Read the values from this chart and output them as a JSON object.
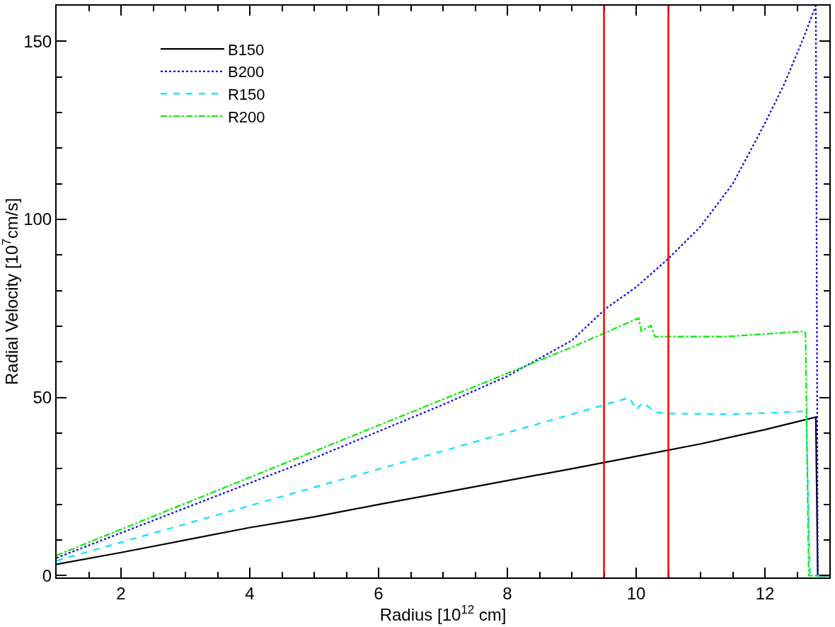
{
  "chart_data": {
    "type": "line",
    "xlabel": "Radius [10$^{12}$ cm]",
    "ylabel": "Radial Velocity [10$^{7}$cm/s]",
    "xlim": [
      1,
      13
    ],
    "xticks": [
      2,
      4,
      6,
      8,
      10,
      12
    ],
    "ylim": [
      -0.5,
      160
    ],
    "yticks": [
      0,
      50,
      100,
      150
    ],
    "legend": "top left",
    "series": [
      {
        "name": "B150",
        "color": "#000000",
        "line_style": "solid",
        "x": [
          1,
          2,
          3,
          4,
          5,
          6,
          7,
          8,
          9,
          10,
          11,
          12,
          12.79,
          12.82,
          13
        ],
        "values": [
          3.2,
          6.5,
          10,
          13.5,
          16.5,
          20,
          23.3,
          26.7,
          30,
          33.5,
          37,
          41,
          44.5,
          0,
          0
        ]
      },
      {
        "name": "B200",
        "color": "#0000ff",
        "line_style": "dotted",
        "x": [
          1,
          2,
          3,
          4,
          5,
          6,
          7,
          8,
          8.5,
          9,
          9.53,
          10,
          10.5,
          11,
          11.5,
          11.81,
          12,
          12.3,
          12.6,
          12.79,
          12.82,
          13
        ],
        "values": [
          5,
          12,
          19,
          26,
          33,
          40.5,
          48,
          56,
          61,
          66,
          75,
          81,
          89,
          98,
          110,
          120.5,
          127,
          138,
          151,
          160,
          0,
          0
        ]
      },
      {
        "name": "R150",
        "color": "#00e5ff",
        "line_style": "dashed",
        "x": [
          1,
          3,
          5,
          7,
          9,
          9.9,
          10.0,
          10.1,
          10.3,
          10.5,
          11.5,
          12.59,
          12.64,
          12.7,
          13
        ],
        "values": [
          4.2,
          14.5,
          24.8,
          35,
          45.3,
          50,
          46.5,
          48.6,
          45.9,
          45.5,
          45.3,
          46.1,
          46,
          0,
          0
        ]
      },
      {
        "name": "R200",
        "color": "#00ee00",
        "line_style": "dashdot",
        "x": [
          1,
          3,
          5,
          7,
          9,
          10.04,
          10.08,
          10.23,
          10.29,
          11.4,
          12.61,
          12.63,
          12.68,
          13
        ],
        "values": [
          5.7,
          20.3,
          34.9,
          49.5,
          64.1,
          72.3,
          68.6,
          70.2,
          67.1,
          67.1,
          68.6,
          68,
          0,
          0
        ]
      }
    ],
    "ref_lines": [
      {
        "axis": "x",
        "value": 9.5,
        "color": "#ff0000"
      },
      {
        "axis": "x",
        "value": 10.5,
        "color": "#ff0000"
      }
    ]
  }
}
